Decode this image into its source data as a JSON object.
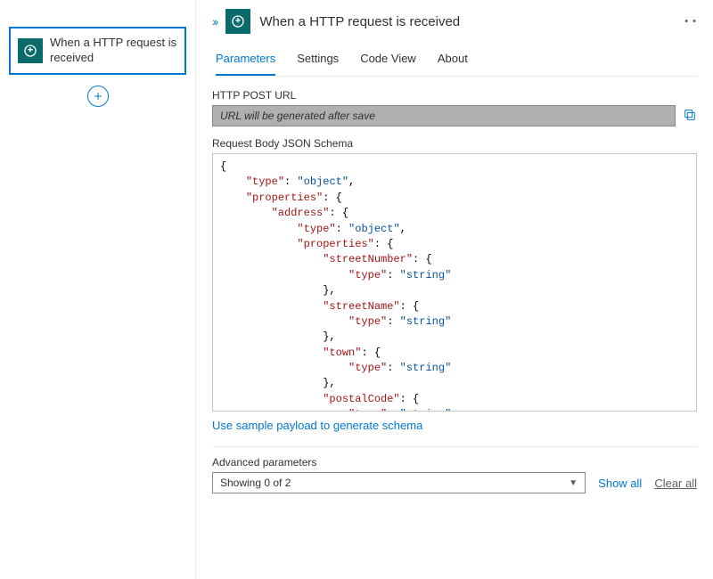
{
  "left": {
    "node_label": "When a HTTP request is received"
  },
  "header": {
    "title": "When a HTTP request is received"
  },
  "tabs": {
    "parameters": "Parameters",
    "settings": "Settings",
    "code_view": "Code View",
    "about": "About"
  },
  "fields": {
    "http_post_url_label": "HTTP POST URL",
    "url_placeholder": "URL will be generated after save",
    "schema_label": "Request Body JSON Schema",
    "sample_link": "Use sample payload to generate schema",
    "advanced_label": "Advanced parameters",
    "advanced_value": "Showing 0 of 2",
    "show_all": "Show all",
    "clear_all": "Clear all"
  },
  "schema": {
    "lines": [
      {
        "indent": 0,
        "text": "{"
      },
      {
        "indent": 1,
        "key": "type",
        "value": "object",
        "comma": true
      },
      {
        "indent": 1,
        "key": "properties",
        "brace": "{"
      },
      {
        "indent": 2,
        "key": "address",
        "brace": "{"
      },
      {
        "indent": 3,
        "key": "type",
        "value": "object",
        "comma": true
      },
      {
        "indent": 3,
        "key": "properties",
        "brace": "{"
      },
      {
        "indent": 4,
        "key": "streetNumber",
        "brace": "{"
      },
      {
        "indent": 5,
        "key": "type",
        "value": "string"
      },
      {
        "indent": 4,
        "close": "},"
      },
      {
        "indent": 4,
        "key": "streetName",
        "brace": "{"
      },
      {
        "indent": 5,
        "key": "type",
        "value": "string"
      },
      {
        "indent": 4,
        "close": "},"
      },
      {
        "indent": 4,
        "key": "town",
        "brace": "{"
      },
      {
        "indent": 5,
        "key": "type",
        "value": "string"
      },
      {
        "indent": 4,
        "close": "},"
      },
      {
        "indent": 4,
        "key": "postalCode",
        "brace": "{"
      },
      {
        "indent": 5,
        "key": "type",
        "value": "string"
      },
      {
        "indent": 4,
        "close": "}"
      },
      {
        "indent": 3,
        "close": "}"
      },
      {
        "indent": 2,
        "close": "}"
      },
      {
        "indent": 1,
        "close": "}"
      },
      {
        "indent": 0,
        "close": "}"
      }
    ]
  }
}
